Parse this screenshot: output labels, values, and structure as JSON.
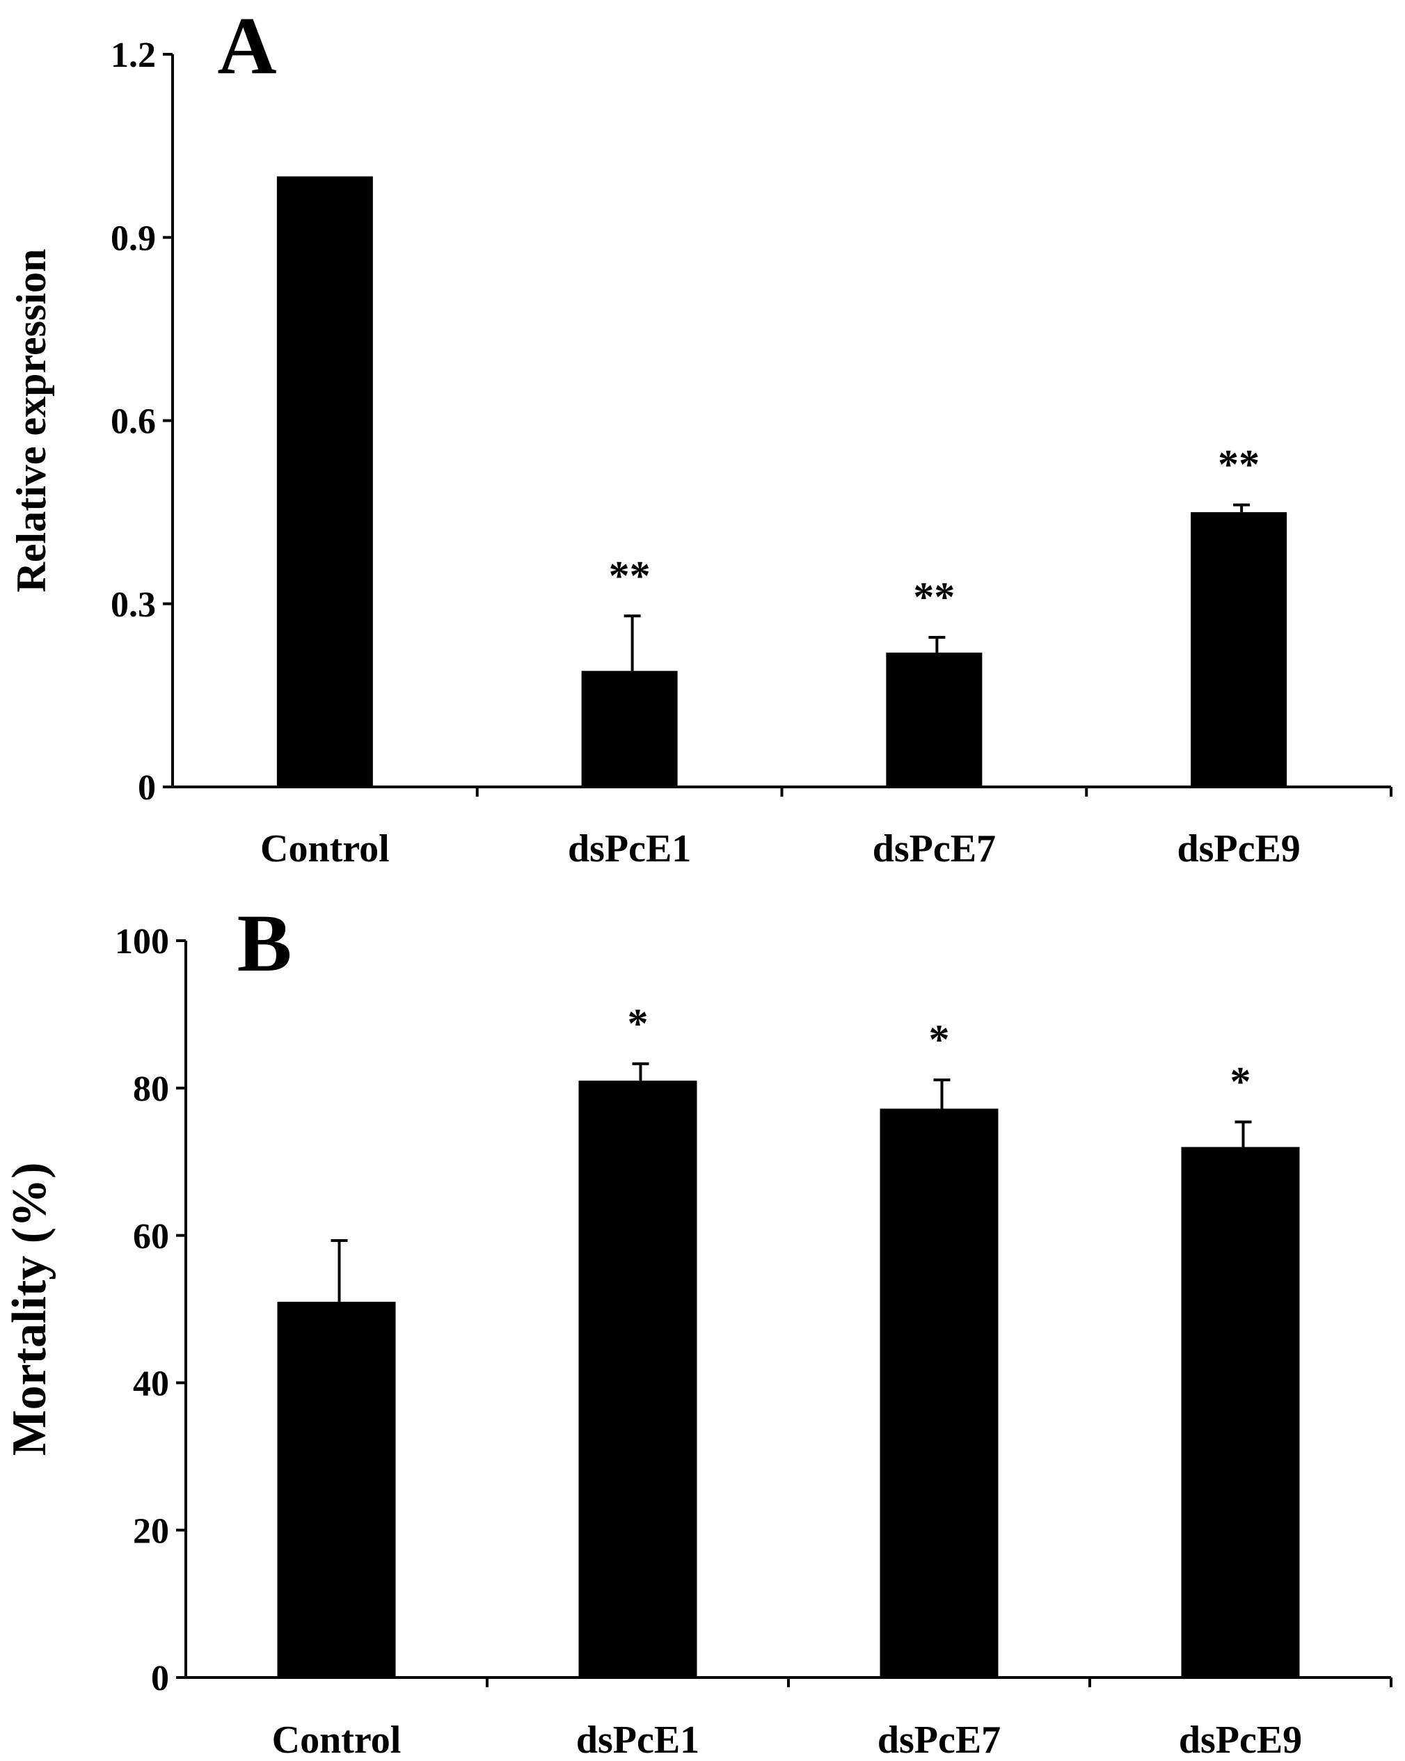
{
  "chart_data": [
    {
      "type": "bar",
      "panel_label": "A",
      "ylabel": "Relative expression",
      "xlabel": "",
      "categories": [
        "Control",
        "dsPcE1",
        "dsPcE7",
        "dsPcE9"
      ],
      "values": [
        1.0,
        0.19,
        0.22,
        0.45
      ],
      "errors": [
        0.0,
        0.09,
        0.025,
        0.012
      ],
      "significance": [
        "",
        "**",
        "**",
        "**"
      ],
      "ylim": [
        0,
        1.2
      ],
      "yticks": [
        0,
        0.3,
        0.6,
        0.9,
        1.2
      ],
      "ytick_labels": [
        "0",
        "0.3",
        "0.6",
        "0.9",
        "1.2"
      ],
      "bar_color": "#000000",
      "grid": false
    },
    {
      "type": "bar",
      "panel_label": "B",
      "ylabel": "Mortality (%)",
      "xlabel": "",
      "categories": [
        "Control",
        "dsPcE1",
        "dsPcE7",
        "dsPcE9"
      ],
      "values": [
        51,
        81,
        77.2,
        72
      ],
      "errors": [
        8.3,
        2.3,
        3.9,
        3.4
      ],
      "significance": [
        "",
        "*",
        "*",
        "*"
      ],
      "ylim": [
        0,
        100
      ],
      "yticks": [
        0,
        20,
        40,
        60,
        80,
        100
      ],
      "ytick_labels": [
        "0",
        "20",
        "40",
        "60",
        "80",
        "100"
      ],
      "bar_color": "#000000",
      "grid": false
    }
  ]
}
